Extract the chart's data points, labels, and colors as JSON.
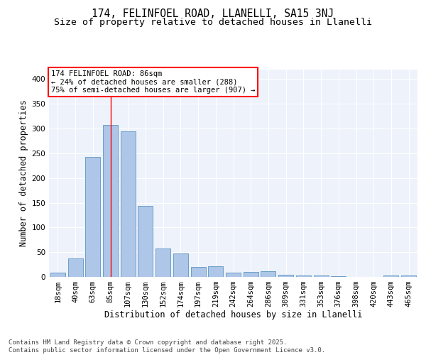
{
  "title1": "174, FELINFOEL ROAD, LLANELLI, SA15 3NJ",
  "title2": "Size of property relative to detached houses in Llanelli",
  "xlabel": "Distribution of detached houses by size in Llanelli",
  "ylabel": "Number of detached properties",
  "categories": [
    "18sqm",
    "40sqm",
    "63sqm",
    "85sqm",
    "107sqm",
    "130sqm",
    "152sqm",
    "174sqm",
    "197sqm",
    "219sqm",
    "242sqm",
    "264sqm",
    "286sqm",
    "309sqm",
    "331sqm",
    "353sqm",
    "376sqm",
    "398sqm",
    "420sqm",
    "443sqm",
    "465sqm"
  ],
  "values": [
    8,
    38,
    243,
    307,
    295,
    144,
    57,
    48,
    20,
    21,
    9,
    10,
    12,
    5,
    3,
    3,
    1,
    0,
    0,
    3,
    3
  ],
  "bar_color": "#aec6e8",
  "bar_edge_color": "#6a9fc8",
  "background_color": "#eef2fb",
  "grid_color": "#ffffff",
  "red_line_index": 3,
  "annotation_text": "174 FELINFOEL ROAD: 86sqm\n← 24% of detached houses are smaller (288)\n75% of semi-detached houses are larger (907) →",
  "annotation_fontsize": 7.5,
  "ylim": [
    0,
    420
  ],
  "yticks": [
    0,
    50,
    100,
    150,
    200,
    250,
    300,
    350,
    400
  ],
  "footer_text": "Contains HM Land Registry data © Crown copyright and database right 2025.\nContains public sector information licensed under the Open Government Licence v3.0.",
  "title_fontsize": 10.5,
  "subtitle_fontsize": 9.5,
  "xlabel_fontsize": 8.5,
  "ylabel_fontsize": 8.5,
  "tick_fontsize": 7.5,
  "footer_fontsize": 6.5
}
